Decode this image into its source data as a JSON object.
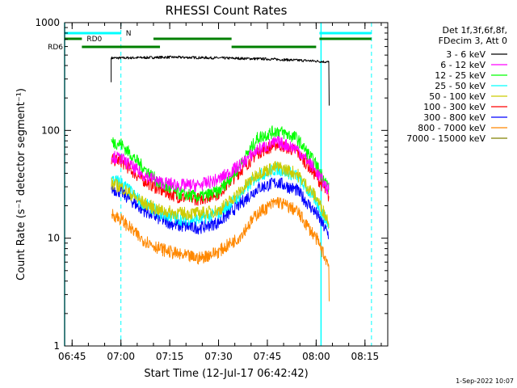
{
  "chart_data": {
    "type": "line",
    "title": "RHESSI Count Rates",
    "xlabel": "Start Time (12-Jul-17 06:42:42)",
    "ylabel": "Count Rate (s⁻¹ detector segment⁻¹)",
    "y_scale": "log",
    "ylim": [
      1,
      1000
    ],
    "xlim": [
      "06:42:42",
      "08:22:00"
    ],
    "x_ticks": [
      "06:45",
      "07:00",
      "07:15",
      "07:30",
      "07:45",
      "08:00",
      "08:15"
    ],
    "y_ticks": [
      "1",
      "10",
      "100",
      "1000"
    ],
    "legend_position": "right",
    "legend_header": [
      "Det 1f,3f,6f,8f,",
      "FDecim 3, Att 0"
    ],
    "series": [
      {
        "name": "3 - 6 keV",
        "color": "#000000",
        "x": [
          "06:57",
          "07:00",
          "07:15",
          "07:30",
          "07:45",
          "08:00",
          "08:04"
        ],
        "values": [
          470,
          470,
          478,
          470,
          460,
          440,
          430
        ]
      },
      {
        "name": "6 - 12 keV",
        "color": "#ff00ff",
        "x": [
          "06:57",
          "07:00",
          "07:06",
          "07:12",
          "07:18",
          "07:24",
          "07:30",
          "07:36",
          "07:42",
          "07:48",
          "07:54",
          "08:00",
          "08:04"
        ],
        "values": [
          57,
          55,
          40,
          33,
          31,
          31,
          35,
          46,
          66,
          78,
          68,
          42,
          27
        ]
      },
      {
        "name": "12 - 25 keV",
        "color": "#00ff00",
        "x": [
          "06:57",
          "07:00",
          "07:06",
          "07:12",
          "07:18",
          "07:24",
          "07:30",
          "07:36",
          "07:42",
          "07:48",
          "07:54",
          "08:00",
          "08:04"
        ],
        "values": [
          78,
          75,
          48,
          32,
          26,
          24,
          27,
          44,
          85,
          100,
          85,
          48,
          29
        ]
      },
      {
        "name": "25 - 50 keV",
        "color": "#00ffff",
        "x": [
          "06:57",
          "07:00",
          "07:06",
          "07:12",
          "07:18",
          "07:24",
          "07:30",
          "07:36",
          "07:42",
          "07:48",
          "07:54",
          "08:00",
          "08:04"
        ],
        "values": [
          35,
          33,
          22,
          17,
          15,
          15,
          17,
          24,
          38,
          44,
          38,
          22,
          13
        ]
      },
      {
        "name": "50 - 100 keV",
        "color": "#cccc00",
        "x": [
          "06:57",
          "07:00",
          "07:06",
          "07:12",
          "07:18",
          "07:24",
          "07:30",
          "07:36",
          "07:42",
          "07:48",
          "07:54",
          "08:00",
          "08:04"
        ],
        "values": [
          32,
          30,
          22,
          18,
          17,
          17,
          18,
          26,
          40,
          46,
          40,
          24,
          14
        ]
      },
      {
        "name": "100 - 300 keV",
        "color": "#ff0000",
        "x": [
          "06:57",
          "07:00",
          "07:06",
          "07:12",
          "07:18",
          "07:24",
          "07:30",
          "07:36",
          "07:42",
          "07:48",
          "07:54",
          "08:00",
          "08:04"
        ],
        "values": [
          54,
          52,
          36,
          28,
          24,
          23,
          26,
          40,
          62,
          75,
          64,
          38,
          24
        ]
      },
      {
        "name": "300 - 800 keV",
        "color": "#0000ff",
        "x": [
          "06:57",
          "07:00",
          "07:06",
          "07:12",
          "07:18",
          "07:24",
          "07:30",
          "07:36",
          "07:42",
          "07:48",
          "07:54",
          "08:00",
          "08:04"
        ],
        "values": [
          29,
          27,
          19,
          15,
          13,
          12.5,
          14,
          20,
          29,
          33,
          28,
          17,
          10.5
        ]
      },
      {
        "name": "800 - 7000 keV",
        "color": "#ff8800",
        "x": [
          "06:57",
          "07:00",
          "07:06",
          "07:12",
          "07:18",
          "07:24",
          "07:30",
          "07:36",
          "07:42",
          "07:48",
          "07:54",
          "08:00",
          "08:04"
        ],
        "values": [
          17,
          15,
          10,
          8,
          7,
          6.5,
          7.5,
          10,
          17,
          22,
          18,
          10,
          5.5
        ]
      },
      {
        "name": "7000 - 15000 keV",
        "color": "#808000",
        "x": [],
        "values": []
      }
    ],
    "annotations": {
      "date_stamp": "1-Sep-2022 10:07",
      "flags": [
        {
          "label": "N",
          "color": "#00ffff",
          "segments": [
            [
              "06:42:42",
              "07:00"
            ],
            [
              "08:01",
              "08:17"
            ]
          ]
        },
        {
          "label": "RD0",
          "color": "#008000",
          "segments": [
            [
              "06:42:42",
              "06:48"
            ],
            [
              "07:10",
              "07:34"
            ],
            [
              "08:01",
              "08:17"
            ]
          ]
        },
        {
          "label": "RD6",
          "color": "#008000",
          "segments": [
            [
              "06:48",
              "07:12"
            ],
            [
              "07:34",
              "08:00"
            ]
          ]
        }
      ],
      "solid_vlines": [
        "06:42:42",
        "08:01:30"
      ],
      "dashed_vlines": [
        "07:00",
        "08:17"
      ]
    }
  }
}
